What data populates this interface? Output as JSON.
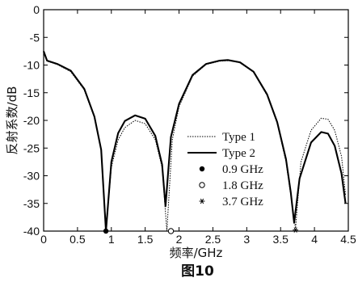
{
  "chart_data": {
    "type": "line",
    "xlabel": "频率/GHz",
    "ylabel": "反射系数/dB",
    "caption": "图10",
    "xlim": [
      0,
      4.5
    ],
    "ylim": [
      -40,
      0
    ],
    "xticks": [
      0,
      0.5,
      1,
      1.5,
      2,
      2.5,
      3,
      3.5,
      4,
      4.5
    ],
    "xtick_labels": [
      "0",
      "0.5",
      "1",
      "1.5",
      "2",
      "2.5",
      "3",
      "3.5",
      "4",
      "4.5"
    ],
    "yticks": [
      0,
      -5,
      -10,
      -15,
      -20,
      -25,
      -30,
      -35,
      -40
    ],
    "ytick_labels": [
      "0",
      "-5",
      "-10",
      "-15",
      "-20",
      "-25",
      "-30",
      "-35",
      "-40"
    ],
    "legend_position": "right",
    "series": [
      {
        "name": "Type 1",
        "style": "dotted",
        "x": [
          0,
          0.05,
          0.2,
          0.4,
          0.6,
          0.75,
          0.85,
          0.92,
          1.0,
          1.1,
          1.2,
          1.35,
          1.5,
          1.65,
          1.75,
          1.82,
          1.9,
          2.0,
          2.2,
          2.4,
          2.6,
          2.75,
          2.9,
          3.1,
          3.3,
          3.45,
          3.58,
          3.65,
          3.72,
          3.8,
          3.95,
          4.1,
          4.2,
          4.3,
          4.4,
          4.46
        ],
        "y": [
          -7.8,
          -9.3,
          -9.9,
          -11.2,
          -14.5,
          -19.5,
          -25.5,
          -40,
          -28.5,
          -23.5,
          -21.3,
          -20.0,
          -20.6,
          -23.5,
          -28.5,
          -40,
          -23.5,
          -17.5,
          -12.0,
          -9.9,
          -9.3,
          -9.2,
          -9.6,
          -11.3,
          -15.5,
          -20.5,
          -27.5,
          -33.5,
          -39.5,
          -27.5,
          -21.8,
          -19.6,
          -19.8,
          -21.8,
          -26.5,
          -33.5
        ]
      },
      {
        "name": "Type 2",
        "style": "solid",
        "x": [
          0,
          0.05,
          0.2,
          0.4,
          0.6,
          0.75,
          0.85,
          0.92,
          1.0,
          1.1,
          1.2,
          1.35,
          1.5,
          1.65,
          1.75,
          1.8,
          1.88,
          2.0,
          2.2,
          2.4,
          2.6,
          2.72,
          2.9,
          3.1,
          3.3,
          3.45,
          3.58,
          3.65,
          3.7,
          3.78,
          3.95,
          4.1,
          4.2,
          4.3,
          4.4,
          4.46
        ],
        "y": [
          -7.5,
          -9.2,
          -9.8,
          -11.0,
          -14.3,
          -19.3,
          -25.3,
          -40,
          -27.5,
          -22.3,
          -20.1,
          -19.1,
          -19.7,
          -22.8,
          -28.0,
          -35.5,
          -23.0,
          -17.0,
          -11.8,
          -9.8,
          -9.2,
          -9.1,
          -9.5,
          -11.2,
          -15.3,
          -20.3,
          -27.0,
          -33.0,
          -38.5,
          -30.5,
          -24.0,
          -22.1,
          -22.4,
          -24.6,
          -29.6,
          -35.0
        ]
      },
      {
        "name": "0.9 GHz",
        "style": "marker-filled-circle",
        "x": [
          0.92
        ],
        "y": [
          -40
        ]
      },
      {
        "name": "1.8 GHz",
        "style": "marker-open-circle",
        "x": [
          1.88
        ],
        "y": [
          -40
        ]
      },
      {
        "name": "3.7 GHz",
        "style": "marker-asterisk",
        "x": [
          3.72
        ],
        "y": [
          -39.8
        ]
      }
    ]
  }
}
